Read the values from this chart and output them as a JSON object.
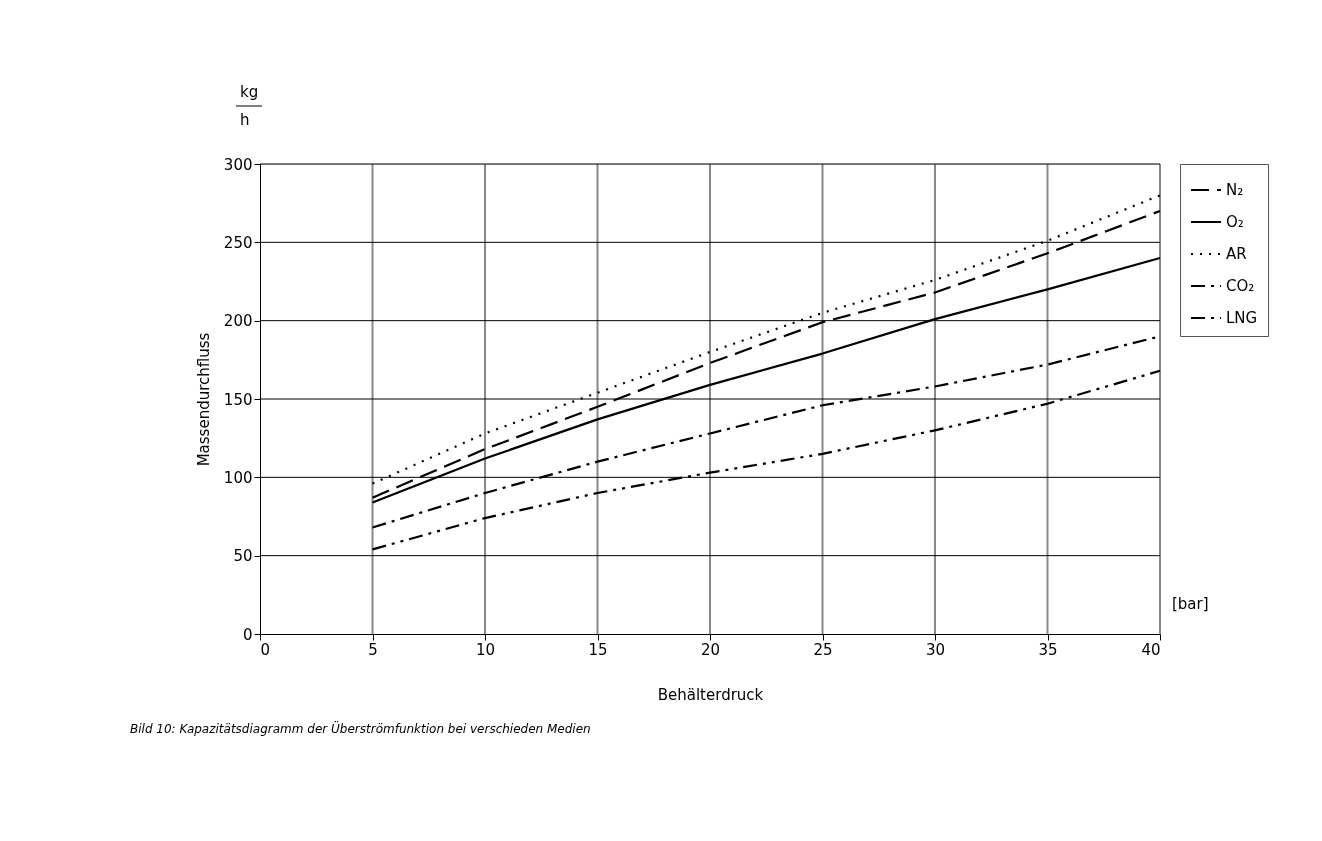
{
  "chart_data": {
    "type": "line",
    "xlabel": "Behälterdruck",
    "ylabel": "Massendurchfluss",
    "annotations": [
      "kg",
      "h",
      "[bar]",
      "Bild 10: Kapazitätsdiagramm der Überströmfunktion bei verschieden Medien"
    ],
    "x": [
      5,
      10,
      15,
      20,
      25,
      30,
      35,
      40
    ],
    "series": [
      {
        "name": "N₂",
        "color": "#000000",
        "line_style": "dashed",
        "values": [
          87,
          118,
          145,
          173,
          199,
          218,
          243,
          270
        ]
      },
      {
        "name": "O₂",
        "color": "#000000",
        "line_style": "solid",
        "values": [
          84,
          112,
          137,
          159,
          179,
          201,
          220,
          240
        ]
      },
      {
        "name": "AR",
        "color": "#000000",
        "line_style": "dotted",
        "values": [
          96,
          128,
          154,
          180,
          205,
          226,
          251,
          280
        ]
      },
      {
        "name": "CO₂",
        "color": "#000000",
        "line_style": "dashdot",
        "values": [
          68,
          90,
          110,
          128,
          146,
          158,
          172,
          190
        ]
      },
      {
        "name": "LNG",
        "color": "#000000",
        "line_style": "dashdotdot",
        "values": [
          54,
          74,
          90,
          103,
          115,
          130,
          147,
          168
        ]
      }
    ],
    "xlim": [
      0,
      40
    ],
    "xticks": [
      0,
      5,
      10,
      15,
      20,
      25,
      30,
      35,
      40
    ],
    "ylim": [
      0,
      300
    ],
    "yticks": [
      0,
      50,
      100,
      150,
      200,
      250,
      300
    ],
    "grid": true,
    "legend": "right",
    "marker": "none"
  }
}
